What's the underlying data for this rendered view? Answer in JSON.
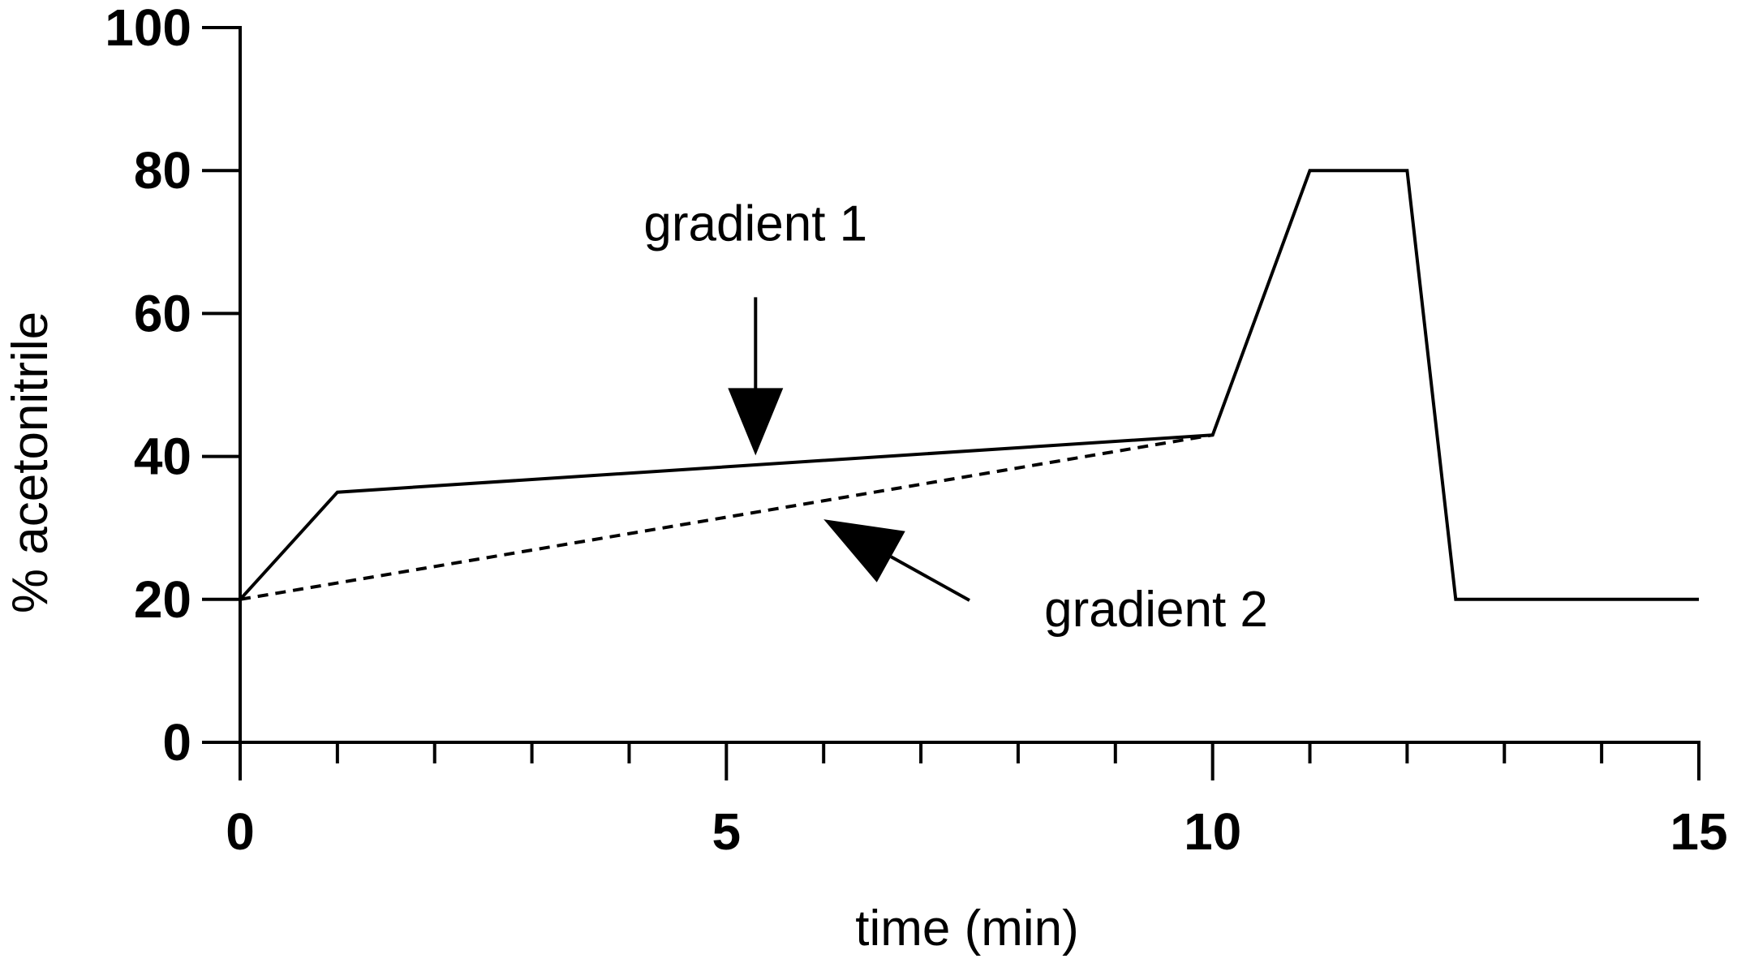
{
  "chart_data": {
    "type": "line",
    "title": "",
    "xlabel": "time (min)",
    "ylabel": "% acetonitrile",
    "xlim": [
      0,
      15
    ],
    "ylim": [
      0,
      100
    ],
    "x_major_ticks": [
      0,
      5,
      10,
      15
    ],
    "x_tick_labels": [
      "0",
      "5",
      "10",
      "15"
    ],
    "x_minor_ticks": [
      1,
      2,
      3,
      4,
      6,
      7,
      8,
      9,
      11,
      12,
      13,
      14
    ],
    "y_ticks": [
      0,
      20,
      40,
      60,
      80,
      100
    ],
    "y_tick_labels": [
      "0",
      "20",
      "40",
      "60",
      "80",
      "100"
    ],
    "grid": false,
    "series": [
      {
        "name": "gradient 1",
        "style": "solid",
        "color": "#000000",
        "points": [
          [
            0,
            20
          ],
          [
            1,
            35
          ],
          [
            10,
            43
          ],
          [
            11,
            80
          ],
          [
            12,
            80
          ],
          [
            12.5,
            20
          ],
          [
            15,
            20
          ]
        ]
      },
      {
        "name": "gradient 2",
        "style": "dashed",
        "color": "#000000",
        "points": [
          [
            0,
            20
          ],
          [
            10,
            43
          ]
        ]
      }
    ],
    "annotations": [
      {
        "text": "gradient 1",
        "points_to": [
          5.3,
          39
        ],
        "arrow": "down"
      },
      {
        "text": "gradient 2",
        "points_to": [
          6,
          32
        ],
        "arrow": "up-left"
      }
    ]
  }
}
